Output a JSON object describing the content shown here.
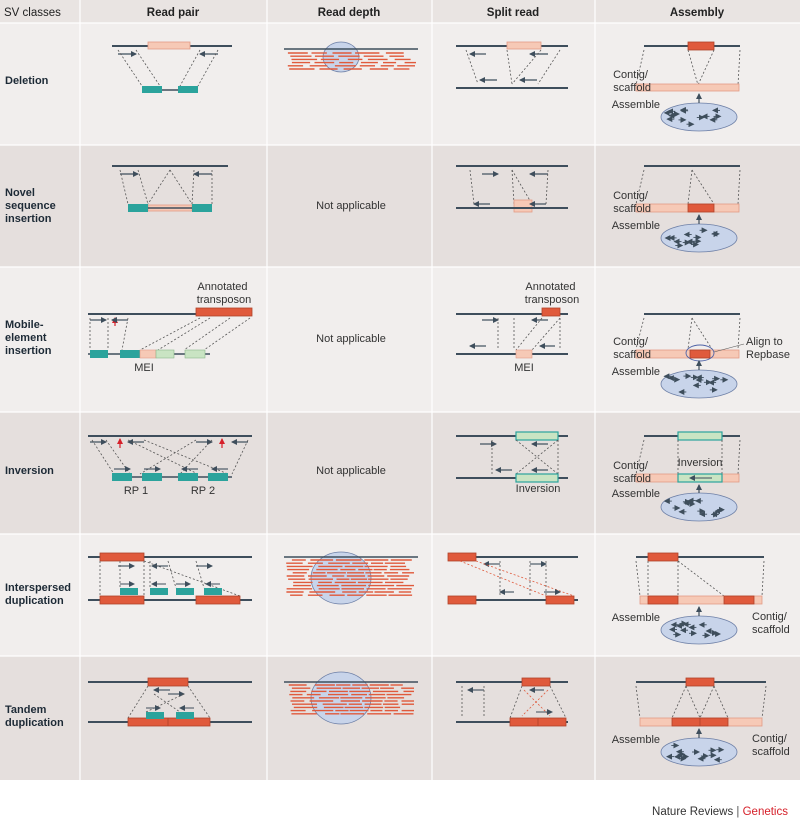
{
  "header": {
    "sv_classes": "SV classes",
    "read_pair": "Read pair",
    "read_depth": "Read depth",
    "split_read": "Split read",
    "assembly": "Assembly"
  },
  "rows": {
    "deletion": {
      "label": [
        "Deletion"
      ]
    },
    "novel": {
      "label": [
        "Novel",
        "sequence",
        "insertion"
      ],
      "read_depth_text": "Not applicable"
    },
    "mobile": {
      "label": [
        "Mobile-",
        "element",
        "insertion"
      ],
      "read_depth_text": "Not applicable",
      "rp_annotated": [
        "Annotated",
        "transposon"
      ],
      "rp_mei": "MEI",
      "sr_annotated": [
        "Annotated",
        "transposon"
      ],
      "sr_mei": "MEI",
      "as_align": [
        "Align to",
        "Repbase"
      ]
    },
    "inversion": {
      "label": [
        "Inversion"
      ],
      "read_depth_text": "Not applicable",
      "rp1": "RP 1",
      "rp2": "RP 2",
      "sr_inversion": "Inversion",
      "as_inversion": "Inversion"
    },
    "interspersed": {
      "label": [
        "Interspersed",
        "duplication"
      ]
    },
    "tandem": {
      "label": [
        "Tandem",
        "duplication"
      ]
    }
  },
  "assembly_labels": {
    "contig": [
      "Contig/",
      "scaffold"
    ],
    "assemble": "Assemble"
  },
  "credit": {
    "journal": "Nature Reviews",
    "separator": "|",
    "section": "Genetics"
  },
  "colors": {
    "band_light": "#f1eeed",
    "band_dark": "#e5dfdd",
    "header_bg": "#e9e4e2",
    "line": "#3e4e5c",
    "red": "#e05a3c",
    "pink": "#f6c9b6",
    "teal": "#2ba39c",
    "mint": "#c9e4c3",
    "oval": "#c8d4ea"
  }
}
